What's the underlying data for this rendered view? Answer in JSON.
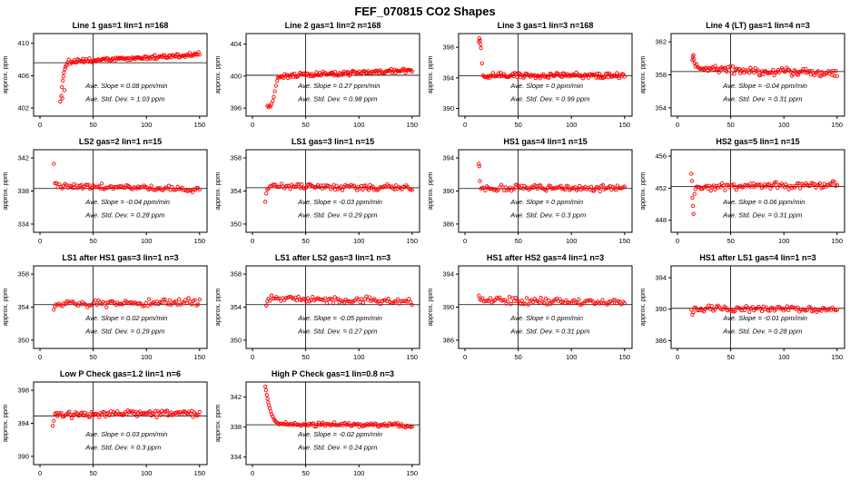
{
  "title": "FEF_070815  CO2 Shapes",
  "chart_data": {
    "type": "scatter",
    "layout": {
      "rows": 4,
      "cols": 4,
      "num_panels": 14
    },
    "xlabel": "",
    "ylabel": "approx. ppm",
    "xticks": [
      0,
      50,
      100,
      150
    ],
    "xlim": [
      -6,
      157
    ],
    "point_color": "#ff0000",
    "ref_line_color": "#000000",
    "panels": [
      {
        "title": "Line 1 gas=1 lin=1 n=168",
        "yticks": [
          402,
          406,
          410
        ],
        "ylim": [
          401,
          411.2
        ],
        "hline": 407.6,
        "vline": 50,
        "annotations": {
          "slope": "Ave. Slope =  0.08  ppm/min",
          "std": "Ave. Std. Dev. =  1.03  ppm"
        },
        "slope_ppm_min": 0.08,
        "std_dev_ppm": 1.03,
        "n": 168,
        "transient": [
          [
            19,
            402.8
          ],
          [
            20,
            403.5
          ],
          [
            20.5,
            404.6
          ],
          [
            21,
            403.2
          ],
          [
            21.5,
            405.4
          ],
          [
            22,
            405.9
          ],
          [
            22.5,
            406.4
          ],
          [
            23,
            404.2
          ],
          [
            23.5,
            406.8
          ],
          [
            24,
            407.1
          ],
          [
            25,
            407.3
          ]
        ],
        "flat": {
          "x0": 26,
          "x1": 150,
          "n": 122,
          "y0": 407.7,
          "y1": 408.6,
          "noise": 0.18
        }
      },
      {
        "title": "Line 2 gas=1 lin=2 n=168",
        "yticks": [
          396,
          400,
          404
        ],
        "ylim": [
          395,
          405.3
        ],
        "hline": 400.1,
        "vline": 50,
        "annotations": {
          "slope": "Ave. Slope =  0.27  ppm/min",
          "std": "Ave. Std. Dev. =  0.98  ppm"
        },
        "slope_ppm_min": 0.27,
        "std_dev_ppm": 0.98,
        "n": 168,
        "transient": [
          [
            14,
            396.3
          ],
          [
            15,
            396.1
          ],
          [
            16,
            396.3
          ],
          [
            17,
            396.2
          ],
          [
            18,
            396.5
          ],
          [
            19,
            396.9
          ],
          [
            20,
            397.4
          ],
          [
            21,
            398.1
          ],
          [
            22,
            398.8
          ],
          [
            23,
            399.4
          ],
          [
            24,
            399.8
          ]
        ],
        "flat": {
          "x0": 25,
          "x1": 150,
          "n": 122,
          "y0": 400.0,
          "y1": 400.7,
          "noise": 0.2
        }
      },
      {
        "title": "Line 3 gas=1 lin=3 n=168",
        "yticks": [
          390,
          394,
          398
        ],
        "ylim": [
          389,
          399.8
        ],
        "hline": 394.3,
        "vline": 50,
        "annotations": {
          "slope": "Ave. Slope =  0  ppm/min",
          "std": "Ave. Std. Dev. =  0.99  ppm"
        },
        "slope_ppm_min": 0,
        "std_dev_ppm": 0.99,
        "n": 168,
        "transient": [
          [
            13,
            398.7
          ],
          [
            13.5,
            399.2
          ],
          [
            14,
            398.9
          ],
          [
            14.5,
            398.4
          ],
          [
            15,
            397.9
          ],
          [
            16,
            395.9
          ]
        ],
        "flat": {
          "x0": 17,
          "x1": 150,
          "n": 130,
          "y0": 394.3,
          "y1": 394.3,
          "noise": 0.25
        }
      },
      {
        "title": "Line 4 (LT) gas=1 lin=4 n=3",
        "yticks": [
          354,
          358,
          362
        ],
        "ylim": [
          353,
          363
        ],
        "hline": 358.4,
        "vline": 50,
        "annotations": {
          "slope": "Ave. Slope =  -0.04  ppm/min",
          "std": "Ave. Std. Dev. =  0.31  ppm"
        },
        "slope_ppm_min": -0.04,
        "std_dev_ppm": 0.31,
        "n": 3,
        "transient": [
          [
            14,
            359.8
          ],
          [
            14.5,
            360.2
          ],
          [
            15,
            360.4
          ],
          [
            15.5,
            359.9
          ],
          [
            16,
            359.4
          ],
          [
            17,
            359.0
          ],
          [
            18,
            359.3
          ]
        ],
        "flat": {
          "x0": 19,
          "x1": 150,
          "n": 112,
          "y0": 358.7,
          "y1": 358.2,
          "noise": 0.32
        }
      },
      {
        "title": "LS2 gas=2 lin=1 n=15",
        "yticks": [
          334,
          338,
          342
        ],
        "ylim": [
          333,
          343
        ],
        "hline": 338.3,
        "vline": 50,
        "annotations": {
          "slope": "Ave. Slope =  -0.04  ppm/min",
          "std": "Ave. Std. Dev. =  0.28  ppm"
        },
        "slope_ppm_min": -0.04,
        "std_dev_ppm": 0.28,
        "n": 15,
        "transient": [
          [
            13,
            341.3
          ]
        ],
        "flat": {
          "x0": 14,
          "x1": 150,
          "n": 100,
          "y0": 338.7,
          "y1": 338.2,
          "noise": 0.22
        }
      },
      {
        "title": "LS1 gas=3 lin=1 n=15",
        "yticks": [
          350,
          354,
          358
        ],
        "ylim": [
          349,
          359
        ],
        "hline": 354.4,
        "vline": 50,
        "annotations": {
          "slope": "Ave. Slope =  -0.03  ppm/min",
          "std": "Ave. Std. Dev. =  0.29  ppm"
        },
        "slope_ppm_min": -0.03,
        "std_dev_ppm": 0.29,
        "n": 15,
        "transient": [
          [
            12,
            352.7
          ],
          [
            13,
            353.7
          ],
          [
            14,
            354.2
          ]
        ],
        "flat": {
          "x0": 15,
          "x1": 150,
          "n": 100,
          "y0": 354.6,
          "y1": 354.4,
          "noise": 0.25
        }
      },
      {
        "title": "HS1 gas=4 lin=1 n=15",
        "yticks": [
          386,
          390,
          394
        ],
        "ylim": [
          385,
          395
        ],
        "hline": 390.3,
        "vline": 50,
        "annotations": {
          "slope": "Ave. Slope =  0  ppm/min",
          "std": "Ave. Std. Dev. =  0.3  ppm"
        },
        "slope_ppm_min": 0,
        "std_dev_ppm": 0.3,
        "n": 15,
        "transient": [
          [
            13,
            393.3
          ],
          [
            13.5,
            393.0
          ],
          [
            14,
            391.2
          ]
        ],
        "flat": {
          "x0": 15,
          "x1": 150,
          "n": 100,
          "y0": 390.4,
          "y1": 390.3,
          "noise": 0.25
        }
      },
      {
        "title": "HS2 gas=5 lin=1 n=15",
        "yticks": [
          448,
          452,
          456
        ],
        "ylim": [
          446.5,
          456.8
        ],
        "hline": 452.2,
        "vline": 50,
        "annotations": {
          "slope": "Ave. Slope =  0.06  ppm/min",
          "std": "Ave. Std. Dev. =  0.31  ppm"
        },
        "slope_ppm_min": 0.06,
        "std_dev_ppm": 0.31,
        "n": 15,
        "transient": [
          [
            13,
            453.8
          ],
          [
            13.5,
            452.9
          ],
          [
            14,
            450.8
          ],
          [
            14.5,
            449.8
          ],
          [
            15,
            448.8
          ],
          [
            16,
            451.3
          ],
          [
            17,
            451.9
          ]
        ],
        "flat": {
          "x0": 18,
          "x1": 150,
          "n": 100,
          "y0": 452.1,
          "y1": 452.5,
          "noise": 0.3
        }
      },
      {
        "title": "LS1 after HS1 gas=3 lin=1 n=3",
        "yticks": [
          350,
          354,
          358
        ],
        "ylim": [
          349,
          359
        ],
        "hline": 354.3,
        "vline": 50,
        "annotations": {
          "slope": "Ave. Slope =  0.02  ppm/min",
          "std": "Ave. Std. Dev. =  0.29  ppm"
        },
        "slope_ppm_min": 0.02,
        "std_dev_ppm": 0.29,
        "n": 3,
        "transient": [
          [
            13,
            353.7
          ],
          [
            14,
            354.1
          ]
        ],
        "flat": {
          "x0": 15,
          "x1": 150,
          "n": 92,
          "y0": 354.4,
          "y1": 354.6,
          "noise": 0.3
        }
      },
      {
        "title": "LS1 after LS2 gas=3 lin=1 n=3",
        "yticks": [
          350,
          354,
          358
        ],
        "ylim": [
          349,
          359
        ],
        "hline": 354.3,
        "vline": 50,
        "annotations": {
          "slope": "Ave. Slope =  -0.05  ppm/min",
          "std": "Ave. Std. Dev. =  0.27  ppm"
        },
        "slope_ppm_min": -0.05,
        "std_dev_ppm": 0.27,
        "n": 3,
        "transient": [
          [
            13,
            354.2
          ],
          [
            14,
            354.7
          ]
        ],
        "flat": {
          "x0": 15,
          "x1": 150,
          "n": 92,
          "y0": 355.1,
          "y1": 354.7,
          "noise": 0.28
        }
      },
      {
        "title": "HS1 after HS2 gas=4 lin=1 n=3",
        "yticks": [
          386,
          390,
          394
        ],
        "ylim": [
          385,
          395
        ],
        "hline": 390.3,
        "vline": 50,
        "annotations": {
          "slope": "Ave. Slope =  0  ppm/min",
          "std": "Ave. Std. Dev. =  0.31  ppm"
        },
        "slope_ppm_min": 0,
        "std_dev_ppm": 0.31,
        "n": 3,
        "transient": [
          [
            13,
            391.4
          ],
          [
            14,
            391.0
          ]
        ],
        "flat": {
          "x0": 15,
          "x1": 150,
          "n": 92,
          "y0": 390.8,
          "y1": 390.6,
          "noise": 0.28
        }
      },
      {
        "title": "HS1 after LS1 gas=4 lin=1 n=3",
        "yticks": [
          386,
          390,
          394
        ],
        "ylim": [
          385,
          395.5
        ],
        "hline": 390.1,
        "vline": 50,
        "annotations": {
          "slope": "Ave. Slope =  -0.01  ppm/min",
          "std": "Ave. Std. Dev. =  0.28  ppm"
        },
        "slope_ppm_min": -0.01,
        "std_dev_ppm": 0.28,
        "n": 3,
        "transient": [
          [
            13,
            389.9
          ],
          [
            14,
            389.3
          ],
          [
            15,
            389.6
          ]
        ],
        "flat": {
          "x0": 16,
          "x1": 150,
          "n": 92,
          "y0": 390.1,
          "y1": 390.0,
          "noise": 0.26
        }
      },
      {
        "title": "Low P Check gas=1.2 lin=1 n=6",
        "yticks": [
          390,
          394,
          398
        ],
        "ylim": [
          389,
          399
        ],
        "hline": 394.9,
        "vline": 50,
        "annotations": {
          "slope": "Ave. Slope =  0.03  ppm/min",
          "std": "Ave. Std. Dev. =  0.3  ppm"
        },
        "slope_ppm_min": 0.03,
        "std_dev_ppm": 0.3,
        "n": 6,
        "transient": [
          [
            12,
            393.7
          ],
          [
            13,
            394.3
          ]
        ],
        "flat": {
          "x0": 14,
          "x1": 150,
          "n": 112,
          "y0": 395.0,
          "y1": 395.3,
          "noise": 0.3
        }
      },
      {
        "title": "High P Check gas=1 lin=0.8 n=3",
        "yticks": [
          334,
          338,
          342
        ],
        "ylim": [
          333,
          344
        ],
        "hline": 338.3,
        "vline": 50,
        "annotations": {
          "slope": "Ave. Slope =  -0.02  ppm/min",
          "std": "Ave. Std. Dev. =  0.24  ppm"
        },
        "slope_ppm_min": -0.02,
        "std_dev_ppm": 0.24,
        "n": 3,
        "transient": [
          [
            12,
            343.4
          ],
          [
            12.7,
            342.9
          ],
          [
            13.4,
            342.3
          ],
          [
            14.1,
            341.8
          ],
          [
            14.8,
            341.3
          ],
          [
            15.5,
            340.9
          ],
          [
            16.2,
            340.5
          ],
          [
            17,
            340.1
          ],
          [
            18,
            339.7
          ],
          [
            19,
            339.4
          ],
          [
            20,
            339.1
          ],
          [
            21,
            338.9
          ],
          [
            22,
            338.7
          ],
          [
            23,
            338.6
          ],
          [
            24,
            338.5
          ]
        ],
        "flat": {
          "x0": 25,
          "x1": 150,
          "n": 102,
          "y0": 338.4,
          "y1": 338.2,
          "noise": 0.2
        }
      }
    ]
  }
}
